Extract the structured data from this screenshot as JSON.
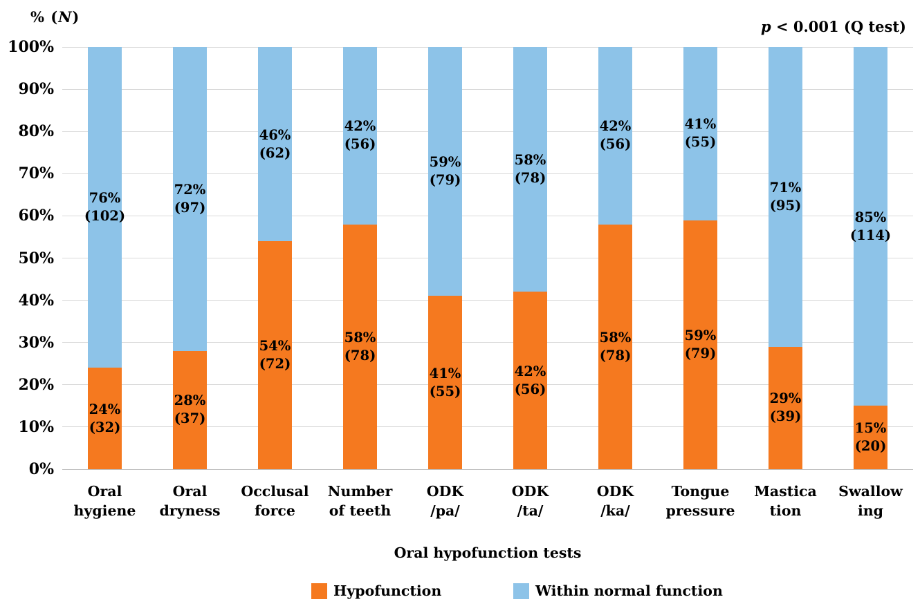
{
  "figure": {
    "y_axis_unit": {
      "pre": "% (",
      "var": "N",
      "post": ")"
    },
    "annotation": {
      "lead": "p",
      "rest": " < 0.001 (Q test)"
    }
  },
  "chart_data": {
    "type": "bar",
    "subtype": "stacked-100-percent",
    "title": "",
    "xlabel": "Oral hypofunction tests",
    "ylabel": "% (N)",
    "ylim": [
      0,
      100
    ],
    "grid": true,
    "gridline_color": "#D9D9D9",
    "axisline_color": "#BFBFBF",
    "legend_position": "bottom",
    "annotation": "p < 0.001 (Q test)",
    "y_tick_labels": [
      "100%",
      "90%",
      "80%",
      "70%",
      "60%",
      "50%",
      "40%",
      "30%",
      "20%",
      "10%",
      "0%"
    ],
    "categories": [
      "Oral\nhygiene",
      "Oral\ndryness",
      "Occlusal\nforce",
      "Number\nof teeth",
      "ODK\n/pa/",
      "ODK\n/ta/",
      "ODK\n/ka/",
      "Tongue\npressure",
      "Mastica\ntion",
      "Swallow\ning"
    ],
    "series": [
      {
        "name": "Hypofunction",
        "color": "#F5791F",
        "stack_order": "bottom",
        "values": [
          24,
          28,
          54,
          58,
          41,
          42,
          58,
          59,
          29,
          15
        ],
        "counts": [
          32,
          37,
          72,
          78,
          55,
          56,
          78,
          79,
          39,
          20
        ],
        "labels": [
          "24%\n(32)",
          "28%\n(37)",
          "54%\n(72)",
          "58%\n(78)",
          "41%\n(55)",
          "42%\n(56)",
          "58%\n(78)",
          "59%\n(79)",
          "29%\n(39)",
          "15%\n(20)"
        ]
      },
      {
        "name": "Within normal function",
        "color": "#8DC3E8",
        "stack_order": "top",
        "values": [
          76,
          72,
          46,
          42,
          59,
          58,
          42,
          41,
          71,
          85
        ],
        "counts": [
          102,
          97,
          62,
          56,
          79,
          78,
          56,
          55,
          95,
          114
        ],
        "labels": [
          "76%\n(102)",
          "72%\n(97)",
          "46%\n(62)",
          "42%\n(56)",
          "59%\n(79)",
          "58%\n(78)",
          "42%\n(56)",
          "41%\n(55)",
          "71%\n(95)",
          "85%\n(114)"
        ]
      }
    ]
  }
}
